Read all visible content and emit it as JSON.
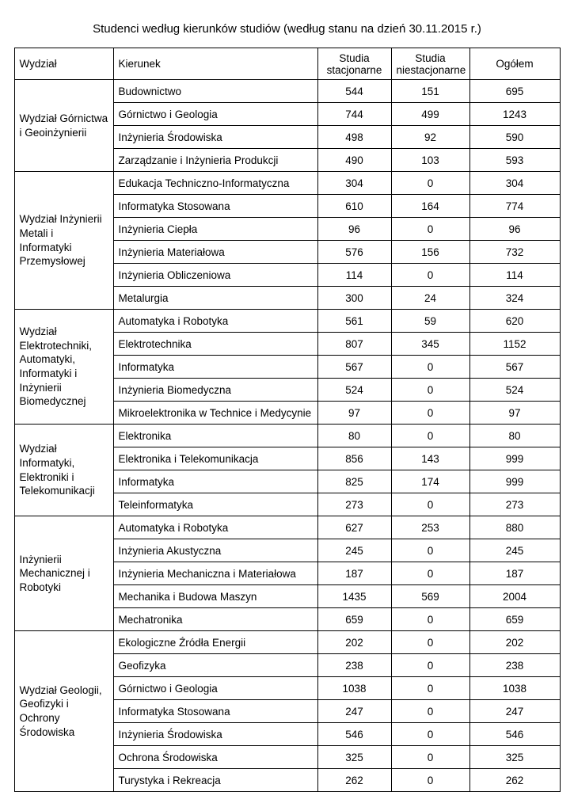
{
  "title": "Studenci według kierunków studiów (według stanu na dzień 30.11.2015 r.)",
  "table": {
    "headers": [
      "Wydział",
      "Kierunek",
      "Studia stacjonarne",
      "Studia niestacjonarne",
      "Ogółem"
    ],
    "groups": [
      {
        "faculty": "Wydział Górnictwa i Geoinżynierii",
        "rows": [
          {
            "kierunek": "Budownictwo",
            "stacjonarne": "544",
            "niestacjonarne": "151",
            "ogolem": "695"
          },
          {
            "kierunek": "Górnictwo i Geologia",
            "stacjonarne": "744",
            "niestacjonarne": "499",
            "ogolem": "1243"
          },
          {
            "kierunek": "Inżynieria Środowiska",
            "stacjonarne": "498",
            "niestacjonarne": "92",
            "ogolem": "590"
          },
          {
            "kierunek": "Zarządzanie i Inżynieria Produkcji",
            "stacjonarne": "490",
            "niestacjonarne": "103",
            "ogolem": "593"
          }
        ]
      },
      {
        "faculty": "Wydział Inżynierii Metali i Informatyki Przemysłowej",
        "rows": [
          {
            "kierunek": "Edukacja Techniczno-Informatyczna",
            "stacjonarne": "304",
            "niestacjonarne": "0",
            "ogolem": "304"
          },
          {
            "kierunek": "Informatyka Stosowana",
            "stacjonarne": "610",
            "niestacjonarne": "164",
            "ogolem": "774"
          },
          {
            "kierunek": "Inżynieria Ciepła",
            "stacjonarne": "96",
            "niestacjonarne": "0",
            "ogolem": "96"
          },
          {
            "kierunek": "Inżynieria Materiałowa",
            "stacjonarne": "576",
            "niestacjonarne": "156",
            "ogolem": "732"
          },
          {
            "kierunek": "Inżynieria Obliczeniowa",
            "stacjonarne": "114",
            "niestacjonarne": "0",
            "ogolem": "114"
          },
          {
            "kierunek": "Metalurgia",
            "stacjonarne": "300",
            "niestacjonarne": "24",
            "ogolem": "324"
          }
        ]
      },
      {
        "faculty": "Wydział Elektrotechniki, Automatyki, Informatyki i Inżynierii Biomedycznej",
        "rows": [
          {
            "kierunek": "Automatyka i Robotyka",
            "stacjonarne": "561",
            "niestacjonarne": "59",
            "ogolem": "620"
          },
          {
            "kierunek": "Elektrotechnika",
            "stacjonarne": "807",
            "niestacjonarne": "345",
            "ogolem": "1152"
          },
          {
            "kierunek": "Informatyka",
            "stacjonarne": "567",
            "niestacjonarne": "0",
            "ogolem": "567"
          },
          {
            "kierunek": "Inżynieria Biomedyczna",
            "stacjonarne": "524",
            "niestacjonarne": "0",
            "ogolem": "524"
          },
          {
            "kierunek": "Mikroelektronika w Technice i Medycynie",
            "stacjonarne": "97",
            "niestacjonarne": "0",
            "ogolem": "97"
          }
        ]
      },
      {
        "faculty": "Wydział Informatyki, Elektroniki i Telekomunikacji",
        "rows": [
          {
            "kierunek": "Elektronika",
            "stacjonarne": "80",
            "niestacjonarne": "0",
            "ogolem": "80"
          },
          {
            "kierunek": "Elektronika i Telekomunikacja",
            "stacjonarne": "856",
            "niestacjonarne": "143",
            "ogolem": "999"
          },
          {
            "kierunek": "Informatyka",
            "stacjonarne": "825",
            "niestacjonarne": "174",
            "ogolem": "999"
          },
          {
            "kierunek": "Teleinformatyka",
            "stacjonarne": "273",
            "niestacjonarne": "0",
            "ogolem": "273"
          }
        ]
      },
      {
        "faculty": "Inżynierii Mechanicznej i Robotyki",
        "rows": [
          {
            "kierunek": "Automatyka i Robotyka",
            "stacjonarne": "627",
            "niestacjonarne": "253",
            "ogolem": "880"
          },
          {
            "kierunek": "Inżynieria Akustyczna",
            "stacjonarne": "245",
            "niestacjonarne": "0",
            "ogolem": "245"
          },
          {
            "kierunek": "Inżynieria Mechaniczna i Materiałowa",
            "stacjonarne": "187",
            "niestacjonarne": "0",
            "ogolem": "187"
          },
          {
            "kierunek": "Mechanika i Budowa Maszyn",
            "stacjonarne": "1435",
            "niestacjonarne": "569",
            "ogolem": "2004"
          },
          {
            "kierunek": "Mechatronika",
            "stacjonarne": "659",
            "niestacjonarne": "0",
            "ogolem": "659"
          }
        ]
      },
      {
        "faculty": "Wydział Geologii, Geofizyki i Ochrony Środowiska",
        "rows": [
          {
            "kierunek": "Ekologiczne Źródła Energii",
            "stacjonarne": "202",
            "niestacjonarne": "0",
            "ogolem": "202"
          },
          {
            "kierunek": "Geofizyka",
            "stacjonarne": "238",
            "niestacjonarne": "0",
            "ogolem": "238"
          },
          {
            "kierunek": "Górnictwo i Geologia",
            "stacjonarne": "1038",
            "niestacjonarne": "0",
            "ogolem": "1038"
          },
          {
            "kierunek": "Informatyka Stosowana",
            "stacjonarne": "247",
            "niestacjonarne": "0",
            "ogolem": "247"
          },
          {
            "kierunek": "Inżynieria Środowiska",
            "stacjonarne": "546",
            "niestacjonarne": "0",
            "ogolem": "546"
          },
          {
            "kierunek": "Ochrona Środowiska",
            "stacjonarne": "325",
            "niestacjonarne": "0",
            "ogolem": "325"
          },
          {
            "kierunek": "Turystyka i Rekreacja",
            "stacjonarne": "262",
            "niestacjonarne": "0",
            "ogolem": "262"
          }
        ]
      }
    ]
  }
}
